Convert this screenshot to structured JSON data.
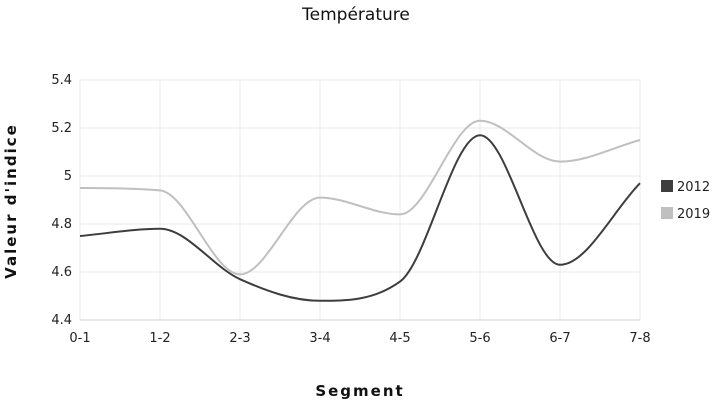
{
  "chart_data": {
    "type": "line",
    "title": "Température",
    "xlabel": "Segment",
    "ylabel": "Valeur d'indice",
    "categories": [
      "0-1",
      "1-2",
      "2-3",
      "3-4",
      "4-5",
      "5-6",
      "6-7",
      "7-8"
    ],
    "ylim": [
      4.4,
      5.4
    ],
    "yticks": [
      "4.4",
      "4.6",
      "4.8",
      "5",
      "5.2",
      "5.4"
    ],
    "grid": true,
    "legend_position": "right",
    "series": [
      {
        "name": "2012",
        "color": "#3d3d3d",
        "values": [
          4.75,
          4.78,
          4.57,
          4.48,
          4.56,
          5.17,
          4.63,
          4.97
        ]
      },
      {
        "name": "2019",
        "color": "#c0c0c0",
        "values": [
          4.95,
          4.94,
          4.59,
          4.91,
          4.84,
          5.23,
          5.06,
          5.15
        ]
      }
    ]
  }
}
